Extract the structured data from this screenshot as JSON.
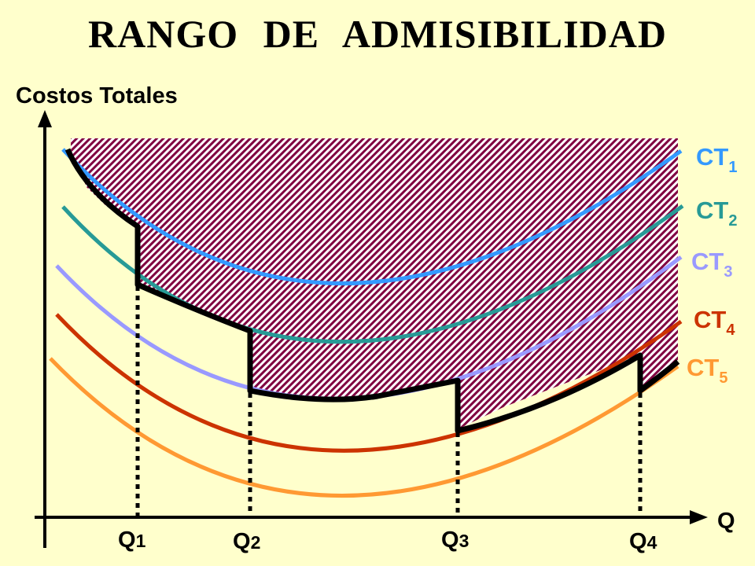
{
  "title": "RANGO   DE   ADMISIBILIDAD",
  "y_axis_label": "Costos Totales",
  "x_axis_label": "Q",
  "curves": [
    {
      "name": "CT",
      "sub": "1",
      "color": "#3399ff"
    },
    {
      "name": "CT",
      "sub": "2",
      "color": "#279a96"
    },
    {
      "name": "CT",
      "sub": "3",
      "color": "#9999ff"
    },
    {
      "name": "CT",
      "sub": "4",
      "color": "#cc3300"
    },
    {
      "name": "CT",
      "sub": "5",
      "color": "#ff9933"
    }
  ],
  "quantities": [
    {
      "name": "Q",
      "sub": "1"
    },
    {
      "name": "Q",
      "sub": "2"
    },
    {
      "name": "Q",
      "sub": "3"
    },
    {
      "name": "Q",
      "sub": "4"
    }
  ],
  "colors": {
    "background": "#ffffcc",
    "hatch": "#800040",
    "admissible_boundary": "#000000"
  }
}
